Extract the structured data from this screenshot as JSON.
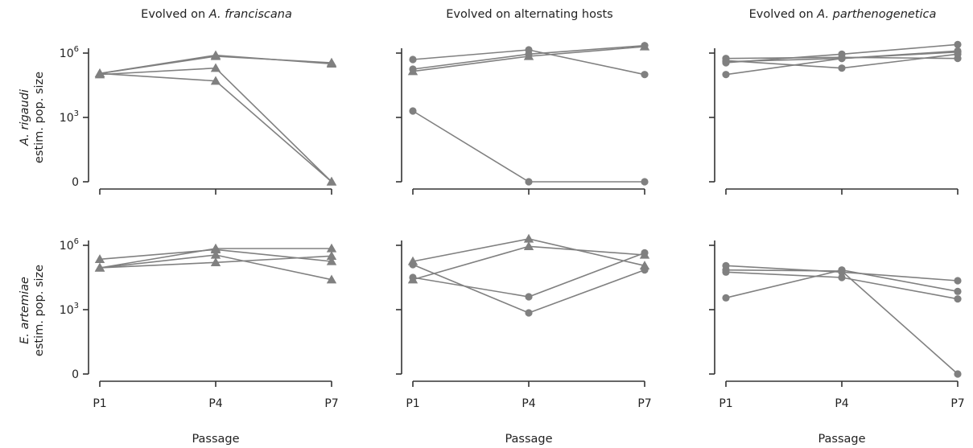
{
  "figure": {
    "col_titles": [
      {
        "prefix": "Evolved on ",
        "italic": "A. franciscana"
      },
      {
        "prefix": "Evolved on alternating hosts",
        "italic": ""
      },
      {
        "prefix": "Evolved on ",
        "italic": "A. parthenogenetica"
      }
    ],
    "row_labels": [
      {
        "italic": "A. rigaudi",
        "rest": "estim. pop. size"
      },
      {
        "italic": "E. artemiae",
        "rest": "estim. pop. size"
      }
    ],
    "xlabel": "Passage",
    "x_ticks": [
      "P1",
      "P4",
      "P7"
    ],
    "y_ticks": [
      {
        "label": "0",
        "value": 0
      },
      {
        "label": "10",
        "sup": "3",
        "value": 3
      },
      {
        "label": "10",
        "sup": "6",
        "value": 6
      }
    ]
  },
  "chart_data": [
    {
      "type": "line",
      "panel": "A. rigaudi – Evolved on A. franciscana",
      "marker": "triangle",
      "x": [
        "P1",
        "P4",
        "P7"
      ],
      "ylim": [
        0,
        6
      ],
      "yscale": "log10 (0 = zero)",
      "series": [
        {
          "values": [
            5.05,
            5.85,
            5.55
          ]
        },
        {
          "values": [
            5.05,
            5.9,
            5.5
          ]
        },
        {
          "values": [
            5.0,
            5.3,
            0
          ]
        },
        {
          "values": [
            5.05,
            4.7,
            0
          ]
        }
      ]
    },
    {
      "type": "line",
      "panel": "A. rigaudi – Evolved on alternating hosts",
      "marker": "mixed",
      "x": [
        "P1",
        "P4",
        "P7"
      ],
      "ylim": [
        0,
        6
      ],
      "yscale": "log10 (0 = zero)",
      "series": [
        {
          "marker": "circle",
          "values": [
            5.7,
            6.15,
            5.0
          ]
        },
        {
          "marker": "circle",
          "values": [
            5.25,
            5.95,
            6.35
          ]
        },
        {
          "marker": "triangle",
          "values": [
            5.15,
            5.85,
            6.3
          ]
        },
        {
          "marker": "circle",
          "values": [
            3.3,
            0,
            0
          ]
        }
      ]
    },
    {
      "type": "line",
      "panel": "A. rigaudi – Evolved on A. parthenogenetica",
      "marker": "circle",
      "x": [
        "P1",
        "P4",
        "P7"
      ],
      "ylim": [
        0,
        6
      ],
      "yscale": "log10 (0 = zero)",
      "series": [
        {
          "values": [
            5.75,
            5.8,
            5.75
          ]
        },
        {
          "values": [
            5.6,
            5.75,
            6.05
          ]
        },
        {
          "values": [
            5.55,
            5.95,
            6.4
          ]
        },
        {
          "values": [
            5.0,
            5.75,
            6.1
          ]
        },
        {
          "values": [
            5.65,
            5.3,
            5.95
          ]
        }
      ]
    },
    {
      "type": "line",
      "panel": "E. artemiae – Evolved on A. franciscana",
      "marker": "triangle",
      "x": [
        "P1",
        "P4",
        "P7"
      ],
      "ylim": [
        0,
        6
      ],
      "yscale": "log10 (0 = zero)",
      "series": [
        {
          "values": [
            5.35,
            5.8,
            5.25
          ]
        },
        {
          "values": [
            4.95,
            5.85,
            5.85
          ]
        },
        {
          "values": [
            4.95,
            5.2,
            5.5
          ]
        },
        {
          "values": [
            4.95,
            5.55,
            4.4
          ]
        }
      ]
    },
    {
      "type": "line",
      "panel": "E. artemiae – Evolved on alternating hosts",
      "marker": "mixed",
      "x": [
        "P1",
        "P4",
        "P7"
      ],
      "ylim": [
        0,
        6
      ],
      "yscale": "log10 (0 = zero)",
      "series": [
        {
          "marker": "triangle",
          "values": [
            5.25,
            6.3,
            5.05
          ]
        },
        {
          "marker": "triangle",
          "values": [
            4.4,
            5.95,
            5.55
          ]
        },
        {
          "marker": "circle",
          "values": [
            4.5,
            3.6,
            5.65
          ]
        },
        {
          "marker": "circle",
          "values": [
            5.1,
            2.85,
            4.85
          ]
        }
      ]
    },
    {
      "type": "line",
      "panel": "E. artemiae – Evolved on A. parthenogenetica",
      "marker": "circle",
      "x": [
        "P1",
        "P4",
        "P7"
      ],
      "ylim": [
        0,
        6
      ],
      "yscale": "log10 (0 = zero)",
      "series": [
        {
          "values": [
            5.05,
            4.75,
            4.35
          ]
        },
        {
          "values": [
            4.75,
            4.5,
            3.5
          ]
        },
        {
          "values": [
            4.85,
            4.8,
            0
          ]
        },
        {
          "values": [
            3.55,
            4.85,
            3.85
          ]
        }
      ]
    }
  ]
}
